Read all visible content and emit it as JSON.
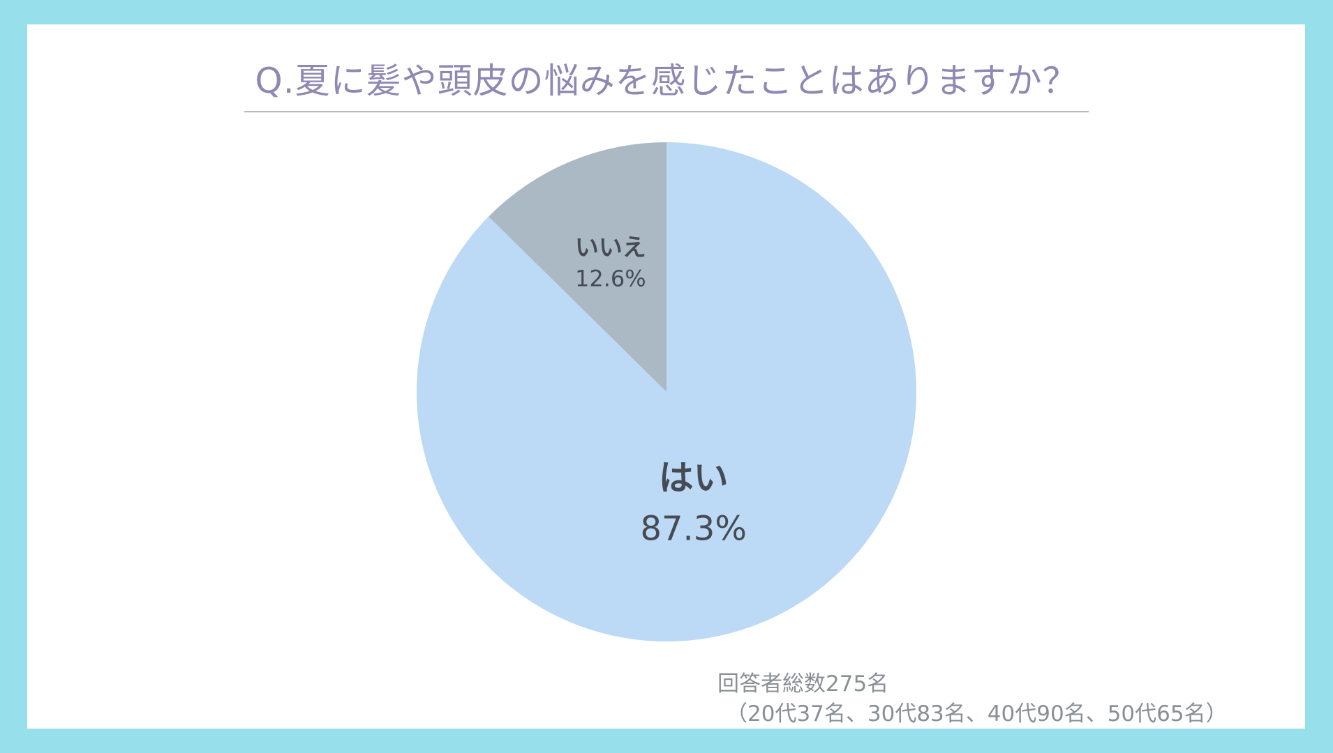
{
  "title": "Q.夏に髪や頭皮の悩みを感じたことはありますか？",
  "colors": {
    "background": "#97dfea",
    "card": "#ffffff",
    "slice_yes": "#bcd9f5",
    "slice_no": "#abb9c5",
    "label": "#464b53",
    "title": "#9088b3"
  },
  "chart_data": {
    "type": "pie",
    "slices": [
      {
        "label": "はい",
        "value": 87.3,
        "display": "87.3%"
      },
      {
        "label": "いいえ",
        "value": 12.6,
        "display": "12.6%"
      }
    ]
  },
  "note": {
    "line1": "回答者総数275名",
    "line2": "（20代37名、30代83名、40代90名、50代65名）"
  }
}
